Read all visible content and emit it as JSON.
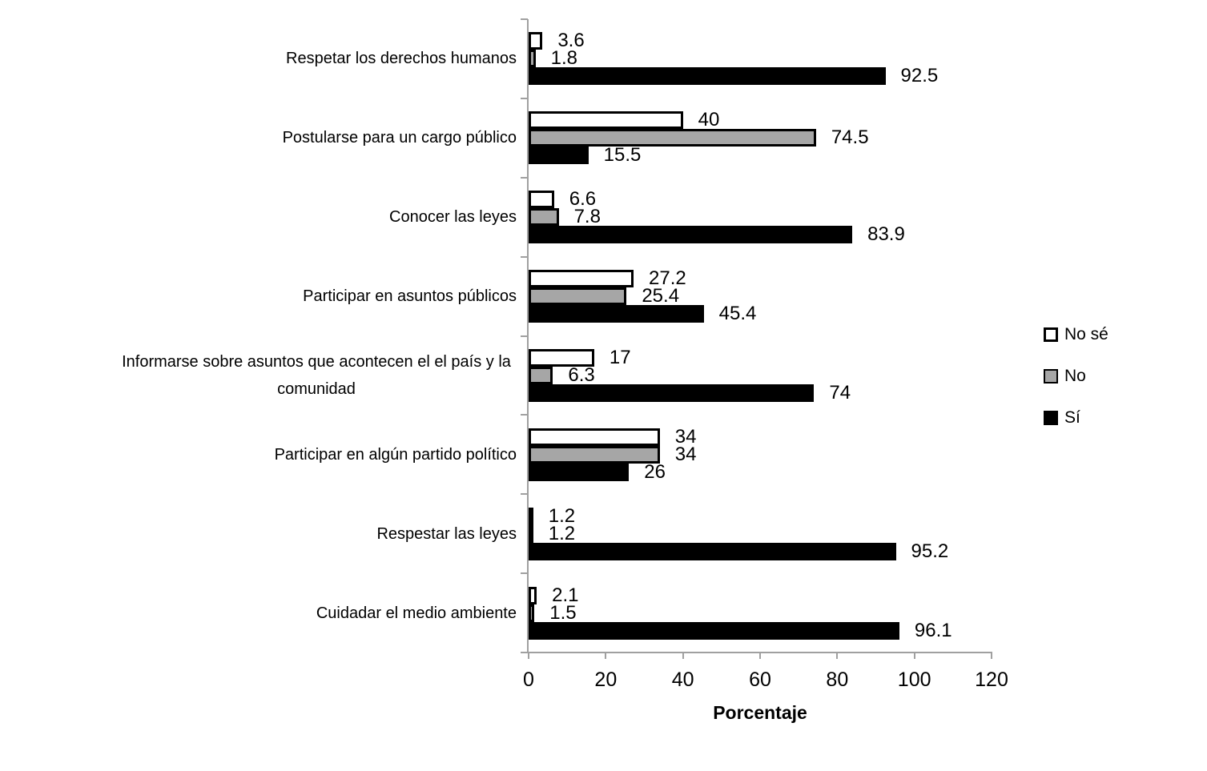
{
  "chart_data": {
    "type": "bar",
    "orientation": "horizontal",
    "title": "",
    "xlabel": "Porcentaje",
    "ylabel": "",
    "xlim": [
      0,
      120
    ],
    "xticks": [
      0,
      20,
      40,
      60,
      80,
      100,
      120
    ],
    "grid": false,
    "legend_position": "right",
    "colors": {
      "no_se_fill": "#ffffff",
      "no_fill": "#a6a6a6",
      "si_fill": "#000000",
      "bar_border": "#000000",
      "axis_line": "#a0a0a0",
      "text": "#000000",
      "background": "#ffffff"
    },
    "categories": [
      "Respetar los derechos humanos",
      "Postularse para un cargo público",
      "Conocer las leyes",
      "Participar en asuntos públicos",
      "Informarse sobre asuntos que acontecen el el país y la comunidad",
      "Participar en algún partido político",
      "Respestar las leyes",
      "Cuidadar el medio ambiente"
    ],
    "series": [
      {
        "name": "No sé",
        "fill": "#ffffff",
        "border": "#000000",
        "values": [
          3.6,
          40,
          6.6,
          27.2,
          17,
          34,
          1.2,
          2.1
        ],
        "labels": [
          "3.6",
          "40",
          "6.6",
          "27.2",
          "17",
          "34",
          "1.2",
          "2.1"
        ]
      },
      {
        "name": "No",
        "fill": "#a6a6a6",
        "border": "#000000",
        "values": [
          1.8,
          74.5,
          7.8,
          25.4,
          6.3,
          34,
          1.2,
          1.5
        ],
        "labels": [
          "1.8",
          "74.5",
          "7.8",
          "25.4",
          "6.3",
          "34",
          "1.2",
          "1.5"
        ]
      },
      {
        "name": "Sí",
        "fill": "#000000",
        "border": "#000000",
        "values": [
          92.5,
          15.5,
          83.9,
          45.4,
          74,
          26,
          95.2,
          96.1
        ],
        "labels": [
          "92.5",
          "15.5",
          "83.9",
          "45.4",
          "74",
          "26",
          "95.2",
          "96.1"
        ]
      }
    ]
  }
}
